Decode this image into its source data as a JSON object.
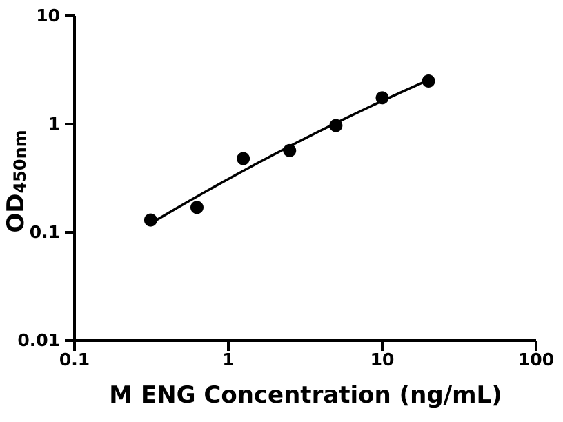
{
  "figure": {
    "background_color": "#ffffff",
    "ink_color": "#000000",
    "x_axis_title": "M ENG Concentration (ng/mL)",
    "y_axis_title_main": "OD",
    "y_axis_title_sub": "450nm"
  },
  "chart_data": {
    "type": "scatter",
    "xlabel": "M ENG Concentration (ng/mL)",
    "ylabel": "OD450nm",
    "x_scale": "log10",
    "y_scale": "log10",
    "xlim": [
      0.1,
      100
    ],
    "ylim": [
      0.01,
      10
    ],
    "x_tick_labels": [
      "0.1",
      "1",
      "10",
      "100"
    ],
    "y_tick_labels": [
      "0.01",
      "0.1",
      "1",
      "10"
    ],
    "grid": false,
    "legend_position": "none",
    "marker": "circle",
    "marker_color": "#000000",
    "line_color": "#000000",
    "points": {
      "x": [
        0.3125,
        0.625,
        1.25,
        2.5,
        5,
        10,
        20
      ],
      "y": [
        0.13,
        0.17,
        0.48,
        0.57,
        0.97,
        1.75,
        2.5
      ]
    },
    "fit_curve": {
      "space": "log10x-log10y",
      "model": "quadratic",
      "coefficients": {
        "a": -0.0613,
        "b": 0.7337,
        "c": -0.2051,
        "u_center": 0.398
      },
      "u_domain": [
        -0.50515,
        1.30103
      ]
    }
  }
}
